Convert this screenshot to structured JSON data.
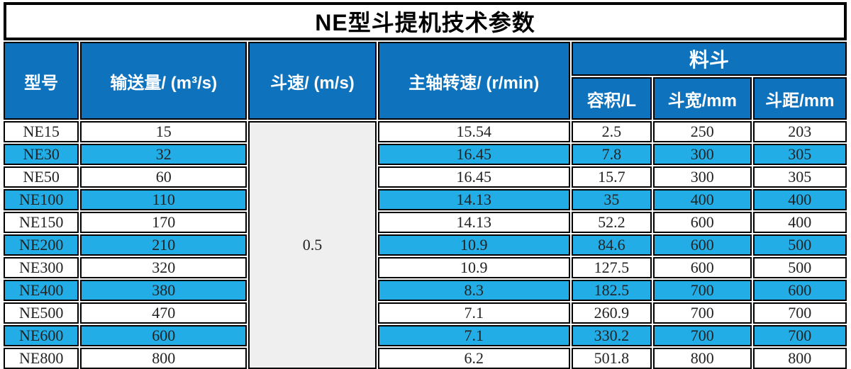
{
  "title": "NE型斗提机技术参数",
  "colors": {
    "header_blue": "#0e72bd",
    "stripe_blue": "#22ade6",
    "merged_cell_gray": "#efefef",
    "border_black": "#000000"
  },
  "table": {
    "column_headers": {
      "model": "型号",
      "capacity": "输送量/ (m³/s)",
      "bucket_speed": "斗速/ (m/s)",
      "shaft_rpm": "主轴转速/ (r/min)",
      "bucket_group": "料斗",
      "volume": "容积/L",
      "bucket_width": "斗宽/mm",
      "bucket_pitch": "斗距/mm"
    },
    "bucket_speed_merged_value": "0.5",
    "rows": [
      {
        "model": "NE15",
        "capacity": "15",
        "rpm": "15.54",
        "volume": "2.5",
        "width": "250",
        "pitch": "203"
      },
      {
        "model": "NE30",
        "capacity": "32",
        "rpm": "16.45",
        "volume": "7.8",
        "width": "300",
        "pitch": "305"
      },
      {
        "model": "NE50",
        "capacity": "60",
        "rpm": "16.45",
        "volume": "15.7",
        "width": "300",
        "pitch": "305"
      },
      {
        "model": "NE100",
        "capacity": "110",
        "rpm": "14.13",
        "volume": "35",
        "width": "400",
        "pitch": "400"
      },
      {
        "model": "NE150",
        "capacity": "170",
        "rpm": "14.13",
        "volume": "52.2",
        "width": "600",
        "pitch": "400"
      },
      {
        "model": "NE200",
        "capacity": "210",
        "rpm": "10.9",
        "volume": "84.6",
        "width": "600",
        "pitch": "500"
      },
      {
        "model": "NE300",
        "capacity": "320",
        "rpm": "10.9",
        "volume": "127.5",
        "width": "600",
        "pitch": "500"
      },
      {
        "model": "NE400",
        "capacity": "380",
        "rpm": "8.3",
        "volume": "182.5",
        "width": "700",
        "pitch": "600"
      },
      {
        "model": "NE500",
        "capacity": "470",
        "rpm": "7.1",
        "volume": "260.9",
        "width": "700",
        "pitch": "700"
      },
      {
        "model": "NE600",
        "capacity": "600",
        "rpm": "7.1",
        "volume": "330.2",
        "width": "700",
        "pitch": "700"
      },
      {
        "model": "NE800",
        "capacity": "800",
        "rpm": "6.2",
        "volume": "501.8",
        "width": "800",
        "pitch": "800"
      }
    ]
  }
}
